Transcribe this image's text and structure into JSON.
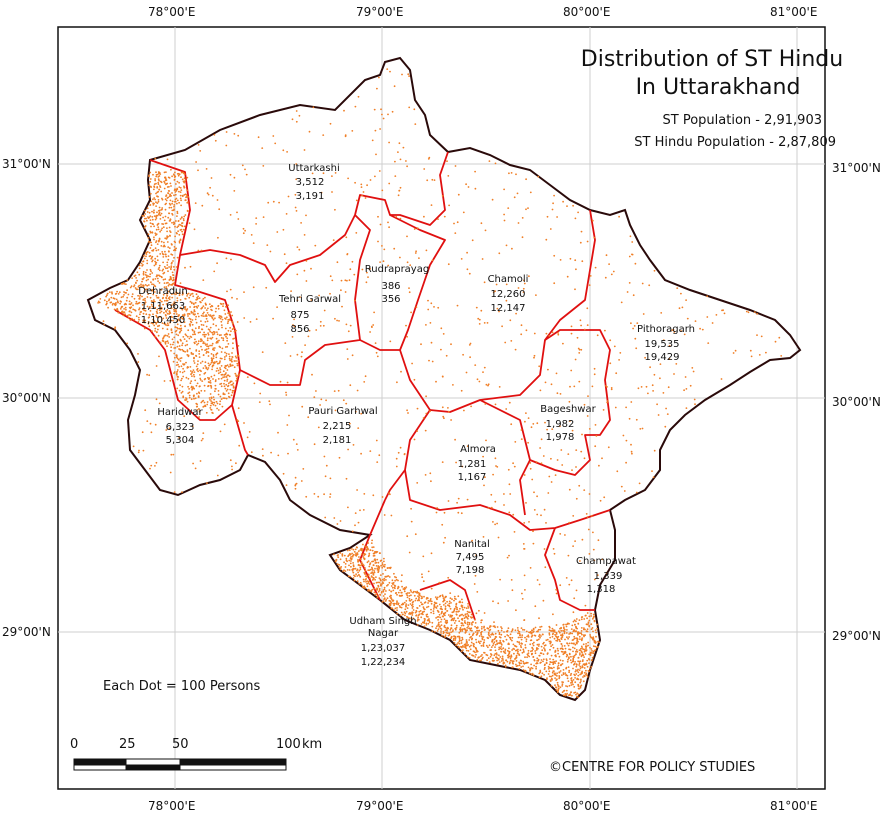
{
  "map": {
    "title_line1": "Distribution of ST Hindu",
    "title_line2": "In Uttarakhand",
    "st_population": "ST Population - 2,91,903",
    "st_hindu_population": "ST Hindu Population - 2,87,809",
    "dot_note": "Each Dot = 100 Persons",
    "credit": "©CENTRE FOR POLICY STUDIES",
    "dot_color": "#f07f27",
    "boundary_color": "#e01010",
    "outline_color": "#2a0a0a"
  },
  "coordinates": {
    "longitudes": [
      "78°00'E",
      "79°00'E",
      "80°00'E",
      "81°00'E"
    ],
    "latitudes": [
      "31°00'N",
      "30°00'N",
      "29°00'N"
    ]
  },
  "scale_bar": {
    "ticks": [
      "0",
      "25",
      "50",
      "100"
    ],
    "unit": "km"
  },
  "districts": [
    {
      "name": "Uttarkashi",
      "st": "3,512",
      "hindu": "3,191"
    },
    {
      "name": "Dehradun",
      "st": "1,11,663",
      "hindu": "1,10,450"
    },
    {
      "name": "Tehri Garwal",
      "st": "875",
      "hindu": "856"
    },
    {
      "name": "Rudraprayag",
      "st": "386",
      "hindu": "356"
    },
    {
      "name": "Chamoli",
      "st": "12,260",
      "hindu": "12,147"
    },
    {
      "name": "Pithoragarh",
      "st": "19,535",
      "hindu": "19,429"
    },
    {
      "name": "Haridwar",
      "st": "6,323",
      "hindu": "5,304"
    },
    {
      "name": "Pauri Garhwal",
      "st": "2,215",
      "hindu": "2,181"
    },
    {
      "name": "Bageshwar",
      "st": "1,982",
      "hindu": "1,978"
    },
    {
      "name": "Almora",
      "st": "1,281",
      "hindu": "1,167"
    },
    {
      "name": "Nanital",
      "st": "7,495",
      "hindu": "7,198"
    },
    {
      "name": "Champawat",
      "st": "1,339",
      "hindu": "1,318"
    },
    {
      "name": "Udham Singh Nagar",
      "st": "1,23,037",
      "hindu": "1,22,234"
    }
  ]
}
